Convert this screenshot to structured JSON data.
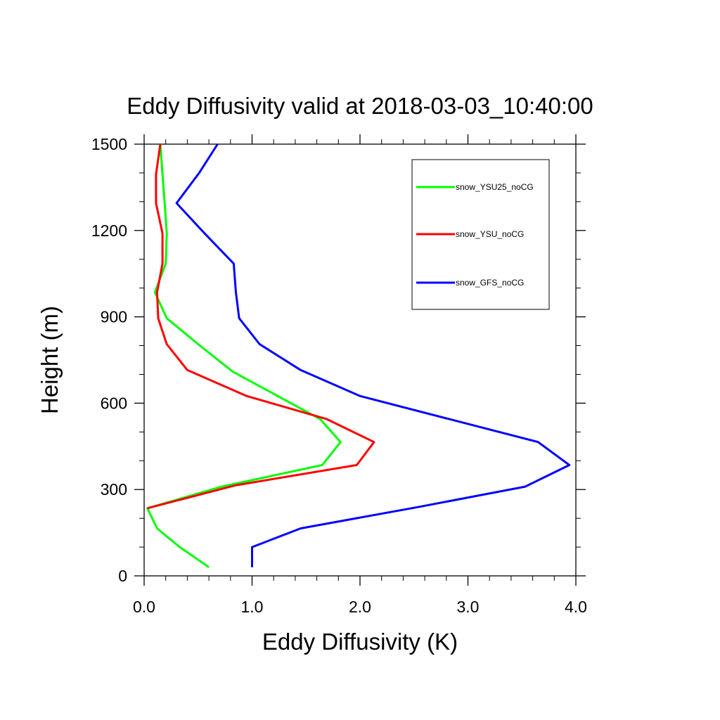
{
  "chart_data": {
    "type": "line",
    "title": "Eddy Diffusivity valid at 2018-03-03_10:40:00",
    "xlabel": "Eddy Diffusivity (K)",
    "ylabel": "Height (m)",
    "xlim": [
      0,
      4
    ],
    "ylim": [
      0,
      1500
    ],
    "xticks": [
      0,
      1,
      2,
      3,
      4
    ],
    "xtick_labels": [
      "0.0",
      "1.0",
      "2.0",
      "3.0",
      "4.0"
    ],
    "yticks": [
      0,
      300,
      600,
      900,
      1200,
      1500
    ],
    "ytick_labels": [
      "0",
      "300",
      "600",
      "900",
      "1200",
      "1500"
    ],
    "grid": false,
    "legend_position": "top-right",
    "series": [
      {
        "name": "snow_YSU25_noCG",
        "color": "#00ff00",
        "points": [
          [
            0.6,
            30
          ],
          [
            0.33,
            100
          ],
          [
            0.12,
            165
          ],
          [
            0.03,
            235
          ],
          [
            0.72,
            310
          ],
          [
            1.65,
            385
          ],
          [
            1.82,
            465
          ],
          [
            1.63,
            545
          ],
          [
            0.82,
            710
          ],
          [
            0.5,
            805
          ],
          [
            0.21,
            895
          ],
          [
            0.1,
            985
          ],
          [
            0.2,
            1085
          ],
          [
            0.21,
            1190
          ],
          [
            0.19,
            1295
          ],
          [
            0.17,
            1395
          ],
          [
            0.15,
            1500
          ]
        ]
      },
      {
        "name": "snow_YSU_noCG",
        "color": "#ff0000",
        "points": [
          [
            0.03,
            235
          ],
          [
            0.85,
            315
          ],
          [
            1.97,
            385
          ],
          [
            2.13,
            465
          ],
          [
            1.69,
            545
          ],
          [
            0.95,
            625
          ],
          [
            0.4,
            715
          ],
          [
            0.21,
            805
          ],
          [
            0.13,
            895
          ],
          [
            0.12,
            985
          ],
          [
            0.17,
            1085
          ],
          [
            0.17,
            1190
          ],
          [
            0.11,
            1295
          ],
          [
            0.11,
            1395
          ],
          [
            0.15,
            1500
          ]
        ]
      },
      {
        "name": "snow_GFS_noCG",
        "color": "#0000ff",
        "points": [
          [
            1.0,
            30
          ],
          [
            1.0,
            100
          ],
          [
            1.45,
            165
          ],
          [
            2.55,
            240
          ],
          [
            3.53,
            310
          ],
          [
            3.94,
            385
          ],
          [
            3.65,
            465
          ],
          [
            2.0,
            625
          ],
          [
            1.45,
            715
          ],
          [
            1.07,
            805
          ],
          [
            0.88,
            895
          ],
          [
            0.85,
            985
          ],
          [
            0.83,
            1085
          ],
          [
            0.56,
            1190
          ],
          [
            0.3,
            1295
          ],
          [
            0.51,
            1400
          ],
          [
            0.68,
            1500
          ]
        ]
      }
    ]
  }
}
